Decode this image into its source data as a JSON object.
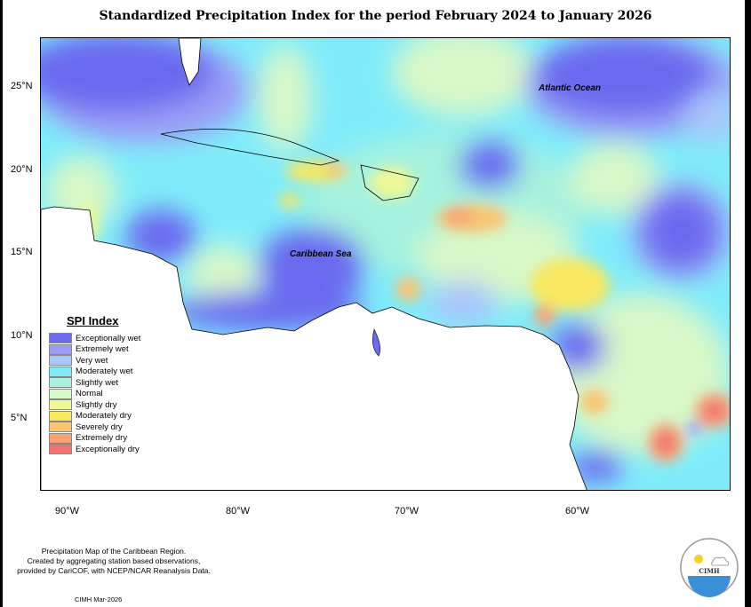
{
  "title": "Standardized Precipitation Index for the period February 2024 to January 2026",
  "map": {
    "labels": {
      "atlantic": "Atlantic Ocean",
      "caribbean": "Caribbean Sea"
    },
    "lat_ticks": [
      "25°N",
      "20°N",
      "15°N",
      "10°N",
      "5°N"
    ],
    "lon_ticks": [
      "90°W",
      "80°W",
      "70°W",
      "60°W"
    ]
  },
  "legend": {
    "title": "SPI Index",
    "items": [
      {
        "label": "Exceptionally wet",
        "color": "#6b6bef"
      },
      {
        "label": "Extremely wet",
        "color": "#9a9cf5"
      },
      {
        "label": "Very wet",
        "color": "#a8c6fa"
      },
      {
        "label": "Moderately wet",
        "color": "#80ecfa"
      },
      {
        "label": "Slightly wet",
        "color": "#a6f2de"
      },
      {
        "label": "Normal",
        "color": "#d8f8c8"
      },
      {
        "label": "Slightly dry",
        "color": "#eef894"
      },
      {
        "label": "Moderately dry",
        "color": "#f8e862"
      },
      {
        "label": "Severely dry",
        "color": "#f8c472"
      },
      {
        "label": "Extremely dry",
        "color": "#f8a274"
      },
      {
        "label": "Exceptionally dry",
        "color": "#f07272"
      }
    ]
  },
  "credits": {
    "line1": "Precipitation Map of the Caribbean Region.",
    "line2": "Created by aggregating station based observations,",
    "line3": "provided by CariCOF, with NCEP/NCAR Reanalysis Data.",
    "stamp": "CIMH Mar-2026"
  },
  "logo": {
    "text": "CIMH"
  }
}
